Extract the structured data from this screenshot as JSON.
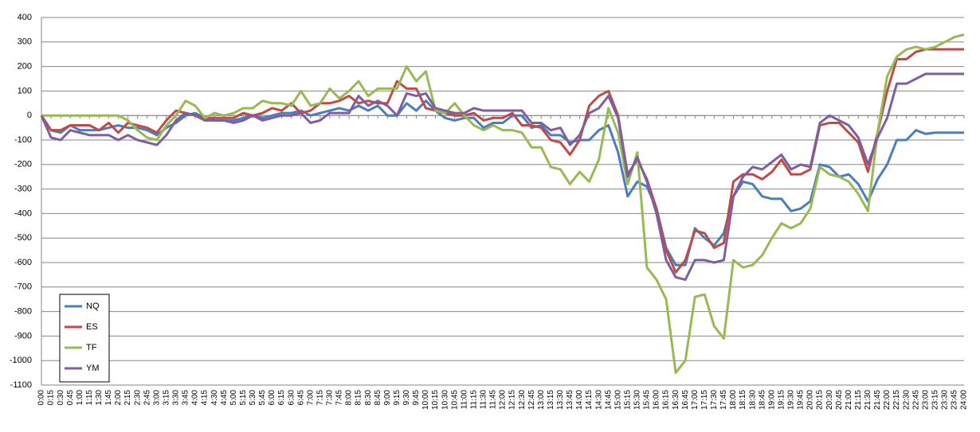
{
  "chart_data": {
    "type": "line",
    "categories": [
      "0:00",
      "0:15",
      "0:30",
      "0:45",
      "1:00",
      "1:15",
      "1:30",
      "1:45",
      "2:00",
      "2:15",
      "2:30",
      "2:45",
      "3:00",
      "3:15",
      "3:30",
      "3:45",
      "4:00",
      "4:15",
      "4:30",
      "4:45",
      "5:00",
      "5:15",
      "5:30",
      "5:45",
      "6:00",
      "6:15",
      "6:30",
      "6:45",
      "7:00",
      "7:15",
      "7:30",
      "7:45",
      "8:00",
      "8:15",
      "8:30",
      "8:45",
      "9:00",
      "9:15",
      "9:30",
      "9:45",
      "10:00",
      "10:15",
      "10:30",
      "10:45",
      "11:00",
      "11:15",
      "11:30",
      "11:45",
      "12:00",
      "12:15",
      "12:30",
      "12:45",
      "13:00",
      "13:15",
      "13:30",
      "13:45",
      "14:00",
      "14:15",
      "14:30",
      "14:45",
      "15:00",
      "15:15",
      "15:30",
      "15:45",
      "16:00",
      "16:15",
      "16:30",
      "16:45",
      "17:00",
      "17:15",
      "17:30",
      "17:45",
      "18:00",
      "18:15",
      "18:30",
      "18:45",
      "19:00",
      "19:15",
      "19:30",
      "19:45",
      "20:00",
      "20:15",
      "20:30",
      "20:45",
      "21:00",
      "21:15",
      "21:30",
      "21:45",
      "22:00",
      "22:15",
      "22:30",
      "22:45",
      "23:00",
      "23:15",
      "23:30",
      "23:45",
      "24:00"
    ],
    "series": [
      {
        "name": "NQ",
        "color": "#4a7ebb",
        "values": [
          0,
          -60,
          -70,
          -40,
          -60,
          -60,
          -60,
          -50,
          -40,
          -50,
          -50,
          -60,
          -80,
          -50,
          -30,
          0,
          10,
          -10,
          -20,
          -20,
          -20,
          -10,
          0,
          -10,
          0,
          10,
          10,
          20,
          0,
          10,
          20,
          30,
          20,
          40,
          20,
          40,
          0,
          0,
          50,
          20,
          60,
          20,
          -10,
          -20,
          -10,
          -10,
          -50,
          -30,
          -30,
          0,
          0,
          -50,
          -40,
          -80,
          -80,
          -110,
          -100,
          -100,
          -60,
          -40,
          -150,
          -330,
          -270,
          -290,
          -380,
          -540,
          -610,
          -610,
          -460,
          -500,
          -530,
          -480,
          -330,
          -270,
          -280,
          -330,
          -340,
          -340,
          -390,
          -380,
          -350,
          -200,
          -210,
          -250,
          -240,
          -280,
          -350,
          -260,
          -200,
          -100,
          -100,
          -60,
          -75,
          -70,
          -70,
          -70,
          -70
        ]
      },
      {
        "name": "ES",
        "color": "#be4b48",
        "values": [
          0,
          -60,
          -60,
          -40,
          -40,
          -40,
          -60,
          -30,
          -70,
          -30,
          -40,
          -50,
          -70,
          -20,
          20,
          10,
          0,
          -10,
          -10,
          -10,
          -10,
          10,
          0,
          10,
          30,
          20,
          50,
          10,
          20,
          50,
          50,
          60,
          80,
          50,
          60,
          50,
          50,
          140,
          110,
          110,
          30,
          20,
          10,
          0,
          0,
          10,
          -20,
          -10,
          -10,
          10,
          -40,
          -40,
          -50,
          -100,
          -110,
          -160,
          -100,
          40,
          80,
          100,
          0,
          -240,
          -180,
          -260,
          -380,
          -550,
          -640,
          -590,
          -470,
          -480,
          -540,
          -520,
          -270,
          -240,
          -240,
          -260,
          -230,
          -180,
          -240,
          -240,
          -220,
          -40,
          -30,
          -30,
          -70,
          -110,
          -230,
          -70,
          100,
          230,
          230,
          260,
          270,
          270,
          270,
          270,
          270
        ]
      },
      {
        "name": "TF",
        "color": "#98b954",
        "values": [
          0,
          0,
          0,
          0,
          0,
          0,
          0,
          0,
          0,
          -20,
          -60,
          -90,
          -100,
          -40,
          0,
          60,
          40,
          -10,
          10,
          0,
          10,
          30,
          30,
          60,
          50,
          50,
          40,
          100,
          40,
          50,
          110,
          70,
          100,
          140,
          80,
          110,
          110,
          110,
          200,
          140,
          180,
          20,
          10,
          50,
          0,
          -40,
          -60,
          -40,
          -60,
          -60,
          -70,
          -130,
          -130,
          -210,
          -220,
          -280,
          -230,
          -270,
          -180,
          30,
          -70,
          -280,
          -150,
          -620,
          -670,
          -750,
          -1050,
          -1000,
          -740,
          -730,
          -860,
          -910,
          -590,
          -620,
          -610,
          -570,
          -500,
          -440,
          -460,
          -440,
          -380,
          -210,
          -240,
          -250,
          -270,
          -320,
          -390,
          -70,
          160,
          240,
          270,
          280,
          270,
          280,
          300,
          320,
          330
        ]
      },
      {
        "name": "YM",
        "color": "#7d5fa0",
        "values": [
          0,
          -90,
          -100,
          -60,
          -70,
          -80,
          -80,
          -80,
          -100,
          -80,
          -100,
          -110,
          -120,
          -80,
          -20,
          10,
          0,
          -20,
          -20,
          -20,
          -30,
          -20,
          0,
          -20,
          -10,
          0,
          0,
          10,
          -30,
          -20,
          10,
          10,
          10,
          80,
          40,
          60,
          40,
          0,
          90,
          80,
          90,
          30,
          20,
          10,
          10,
          30,
          20,
          20,
          20,
          20,
          20,
          -30,
          -30,
          -60,
          -50,
          -120,
          -80,
          10,
          30,
          80,
          -10,
          -250,
          -170,
          -270,
          -400,
          -590,
          -660,
          -670,
          -590,
          -590,
          -600,
          -590,
          -330,
          -250,
          -210,
          -220,
          -190,
          -160,
          -220,
          -200,
          -210,
          -30,
          0,
          -20,
          -40,
          -90,
          -200,
          -90,
          -10,
          130,
          130,
          150,
          170,
          170,
          170,
          170,
          170
        ]
      }
    ],
    "ylim": [
      -1100,
      400
    ],
    "yticks": [
      -1100,
      -1000,
      -900,
      -800,
      -700,
      -600,
      -500,
      -400,
      -300,
      -200,
      -100,
      0,
      100,
      200,
      300,
      400
    ],
    "grid": true,
    "legend": "lower left"
  }
}
